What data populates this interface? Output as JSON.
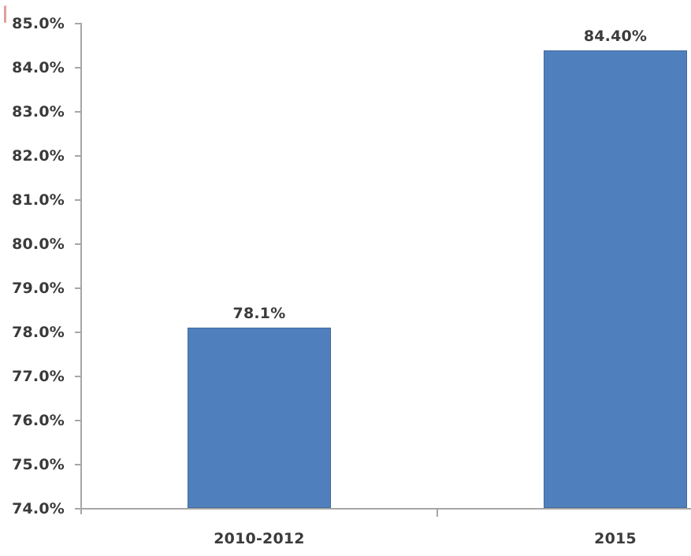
{
  "chart_data": {
    "type": "bar",
    "title": "",
    "xlabel": "",
    "ylabel": "",
    "categories": [
      "2010-2012",
      "2015"
    ],
    "values": [
      78.1,
      84.4
    ],
    "bar_labels": [
      "78.1%",
      "84.40%"
    ],
    "yticks": [
      "85.0%",
      "84.0%",
      "83.0%",
      "82.0%",
      "81.0%",
      "80.0%",
      "79.0%",
      "78.0%",
      "77.0%",
      "76.0%",
      "75.0%",
      "74.0%"
    ],
    "ytick_values": [
      85.0,
      84.0,
      83.0,
      82.0,
      81.0,
      80.0,
      79.0,
      78.0,
      77.0,
      76.0,
      75.0,
      74.0
    ],
    "ylim": [
      74.0,
      85.0
    ],
    "grid": "off",
    "legend": "none",
    "colors": {
      "bar_fill": "#4F80BD",
      "bar_border": "#41699E",
      "axis": "#A6A6A6",
      "text": "#3B3B3B",
      "red_artifact": "rgba(203,82,74,0.55)"
    }
  }
}
